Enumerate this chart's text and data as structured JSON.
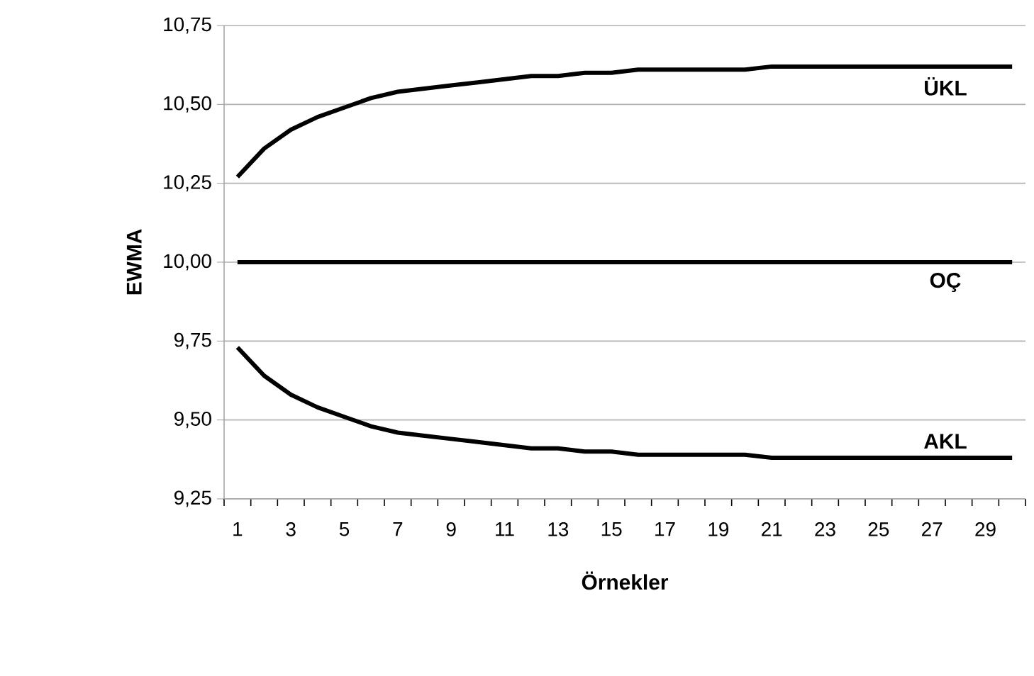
{
  "chart_data": {
    "type": "line",
    "xlabel": "Örnekler",
    "ylabel": "EWMA",
    "categories": [
      "1",
      null,
      "3",
      null,
      "5",
      null,
      "7",
      null,
      "9",
      null,
      "11",
      null,
      "13",
      null,
      "15",
      null,
      "17",
      null,
      "19",
      null,
      "21",
      null,
      "23",
      null,
      "25",
      null,
      "27",
      null,
      "29",
      null
    ],
    "series": [
      {
        "color": "#000000",
        "values": [
          10.27,
          10.36,
          10.42,
          10.46,
          10.49,
          10.52,
          10.54,
          10.55,
          10.56,
          10.57,
          10.58,
          10.59,
          10.59,
          10.6,
          10.6,
          10.61,
          10.61,
          10.61,
          10.61,
          10.61,
          10.62,
          10.62,
          10.62,
          10.62,
          10.62,
          10.62,
          10.62,
          10.62,
          10.62,
          10.62
        ]
      },
      {
        "color": "#000000",
        "values": [
          10,
          10,
          10,
          10,
          10,
          10,
          10,
          10,
          10,
          10,
          10,
          10,
          10,
          10,
          10,
          10,
          10,
          10,
          10,
          10,
          10,
          10,
          10,
          10,
          10,
          10,
          10,
          10,
          10,
          10
        ]
      },
      {
        "color": "#000000",
        "values": [
          9.73,
          9.64,
          9.58,
          9.54,
          9.51,
          9.48,
          9.46,
          9.45,
          9.44,
          9.43,
          9.42,
          9.41,
          9.41,
          9.4,
          9.4,
          9.39,
          9.39,
          9.39,
          9.39,
          9.39,
          9.38,
          9.38,
          9.38,
          9.38,
          9.38,
          9.38,
          9.38,
          9.38,
          9.38,
          9.38
        ]
      }
    ],
    "ylim": [
      9.25,
      10.75
    ],
    "yticks": [
      {
        "value": 9.25,
        "label": "9,25"
      },
      {
        "value": 9.5,
        "label": "9,50"
      },
      {
        "value": 9.75,
        "label": "9,75"
      },
      {
        "value": 10,
        "label": "10,00"
      },
      {
        "value": 10.25,
        "label": "10,25"
      },
      {
        "value": 10.5,
        "label": "10,50"
      },
      {
        "value": 10.75,
        "label": "10,75"
      }
    ],
    "grid": "y",
    "marker": "none",
    "line_style": "solid",
    "annotations": [
      {
        "text": "ÜKL",
        "x": "27",
        "y": 10.62
      },
      {
        "text": "OÇ",
        "x": "27",
        "y": 10
      },
      {
        "text": "AKL",
        "x": "27",
        "y": 9.38
      }
    ]
  }
}
